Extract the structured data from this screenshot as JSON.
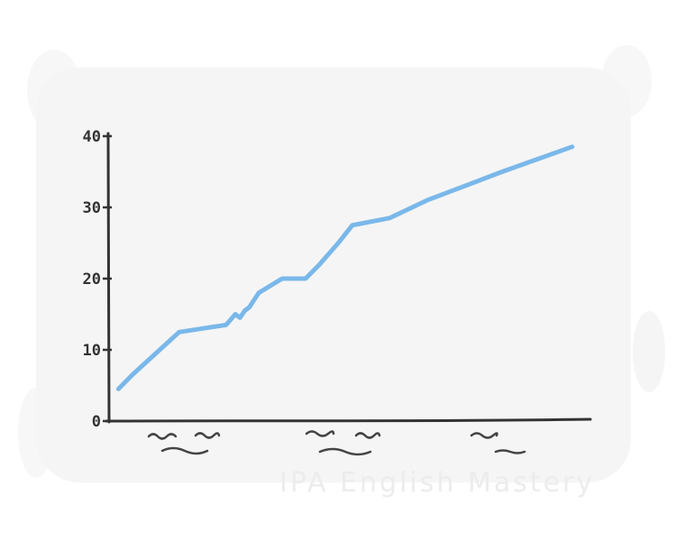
{
  "chart_data": {
    "type": "line",
    "title": "",
    "xlabel": "",
    "ylabel": "",
    "ylim": [
      0,
      40
    ],
    "yticks": [
      0,
      10,
      20,
      30,
      40
    ],
    "xlim": [
      0,
      100
    ],
    "grid": false,
    "legend": "none",
    "series": [
      {
        "color": "#7ab8ea",
        "x": [
          2,
          5,
          10,
          15,
          20,
          25,
          27,
          28,
          29,
          30,
          32,
          37,
          42,
          45,
          49,
          52,
          56,
          60,
          68,
          72,
          84,
          99
        ],
        "y": [
          4.5,
          6.5,
          9.5,
          12.5,
          13,
          13.5,
          15,
          14.5,
          15.5,
          16,
          18,
          20,
          20,
          22,
          25,
          27.5,
          28,
          28.5,
          31,
          32,
          35,
          38.5
        ]
      }
    ],
    "x_labels_illegible": true
  },
  "watermark": {
    "text": "IPA English Mastery"
  },
  "colors": {
    "panel_bg": "#f5f5f5",
    "axis": "#333333",
    "line": "#7ab8ea"
  }
}
